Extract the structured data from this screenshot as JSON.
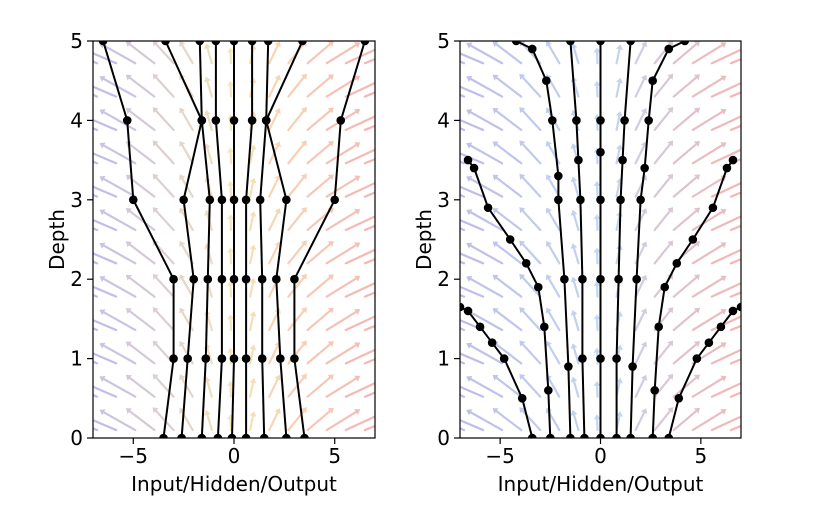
{
  "chart_data": [
    {
      "type": "line",
      "xlabel": "Input/Hidden/Output",
      "ylabel": "Depth",
      "xlim": [
        -7,
        7
      ],
      "ylim": [
        0,
        5
      ],
      "xticks": [
        -5,
        0,
        5
      ],
      "xtick_labels": [
        "−5",
        "0",
        "5"
      ],
      "yticks": [
        0,
        1,
        2,
        3,
        4,
        5
      ],
      "ytick_labels": [
        "0",
        "1",
        "2",
        "3",
        "4",
        "5"
      ],
      "line_color": "#000000",
      "marker_color": "#000000",
      "field_colors": {
        "left": "#8e86d8",
        "center": "#f4cf7a",
        "right": "#ec7a78"
      },
      "series": [
        {
          "x": [
            -3.5,
            -3.0,
            -3.0,
            -5.0,
            -5.3,
            -6.5
          ],
          "y": [
            0,
            1,
            2,
            3,
            4,
            5
          ]
        },
        {
          "x": [
            -2.6,
            -2.3,
            -2.0,
            -2.5,
            -1.6,
            -3.4
          ],
          "y": [
            0,
            1,
            2,
            3,
            4,
            5
          ]
        },
        {
          "x": [
            -1.6,
            -1.4,
            -1.3,
            -1.2,
            -1.6,
            -1.7
          ],
          "y": [
            0,
            1,
            2,
            3,
            4,
            5
          ]
        },
        {
          "x": [
            -0.8,
            -0.6,
            -0.6,
            -0.6,
            -0.9,
            -0.9
          ],
          "y": [
            0,
            1,
            2,
            3,
            4,
            5
          ]
        },
        {
          "x": [
            -0.1,
            0.0,
            0.0,
            0.0,
            0.0,
            0.0
          ],
          "y": [
            0,
            1,
            2,
            3,
            4,
            5
          ]
        },
        {
          "x": [
            0.6,
            0.6,
            0.6,
            0.6,
            0.9,
            0.9
          ],
          "y": [
            0,
            1,
            2,
            3,
            4,
            5
          ]
        },
        {
          "x": [
            1.5,
            1.4,
            1.4,
            1.3,
            1.6,
            1.7
          ],
          "y": [
            0,
            1,
            2,
            3,
            4,
            5
          ]
        },
        {
          "x": [
            2.6,
            2.3,
            2.1,
            2.6,
            1.6,
            3.4
          ],
          "y": [
            0,
            1,
            2,
            3,
            4,
            5
          ]
        },
        {
          "x": [
            3.5,
            3.0,
            3.0,
            5.0,
            5.3,
            6.5
          ],
          "y": [
            0,
            1,
            2,
            3,
            4,
            5
          ]
        }
      ]
    },
    {
      "type": "line",
      "xlabel": "Input/Hidden/Output",
      "ylabel": "Depth",
      "xlim": [
        -7,
        7
      ],
      "ylim": [
        0,
        5
      ],
      "xticks": [
        -5,
        0,
        5
      ],
      "xtick_labels": [
        "−5",
        "0",
        "5"
      ],
      "yticks": [
        0,
        1,
        2,
        3,
        4,
        5
      ],
      "ytick_labels": [
        "0",
        "1",
        "2",
        "3",
        "4",
        "5"
      ],
      "line_color": "#000000",
      "marker_color": "#000000",
      "field_colors": {
        "left": "#8e86d8",
        "center": "#8fb8e8",
        "right": "#ec7a78"
      },
      "series": [
        {
          "x": [
            -3.4,
            -3.9,
            -4.8,
            -5.4,
            -6.0,
            -6.6,
            -7.0
          ],
          "y": [
            0,
            0.5,
            1.0,
            1.2,
            1.4,
            1.6,
            1.65
          ]
        },
        {
          "x": [
            -2.5,
            -2.6,
            -2.8,
            -3.1,
            -3.7,
            -4.5,
            -5.6,
            -6.3,
            -6.6
          ],
          "y": [
            0,
            0.6,
            1.4,
            1.9,
            2.2,
            2.5,
            2.9,
            3.4,
            3.5
          ]
        },
        {
          "x": [
            -1.5,
            -1.6,
            -1.8,
            -2.1,
            -2.1,
            -2.4,
            -2.7,
            -3.4,
            -4.2
          ],
          "y": [
            0,
            0.9,
            2.0,
            3.0,
            3.3,
            4.0,
            4.5,
            4.9,
            5.0
          ]
        },
        {
          "x": [
            -0.8,
            -0.9,
            -0.9,
            -1.0,
            -1.1,
            -1.2,
            -1.5
          ],
          "y": [
            0,
            1.0,
            2.0,
            3.0,
            3.5,
            4.0,
            5.0
          ]
        },
        {
          "x": [
            0.0,
            0.0,
            0.0,
            0.0,
            0.0,
            0.0,
            0.0
          ],
          "y": [
            0,
            1.0,
            2.0,
            3.0,
            3.6,
            4.0,
            5.0
          ]
        },
        {
          "x": [
            0.8,
            0.8,
            0.9,
            1.0,
            1.1,
            1.2,
            1.5
          ],
          "y": [
            0,
            1.0,
            2.0,
            3.0,
            3.5,
            4.0,
            5.0
          ]
        },
        {
          "x": [
            1.5,
            1.6,
            1.8,
            2.0,
            2.2,
            2.4,
            2.6,
            3.4,
            4.2
          ],
          "y": [
            0,
            0.9,
            2.0,
            3.0,
            3.4,
            4.0,
            4.5,
            4.9,
            5.0
          ]
        },
        {
          "x": [
            2.6,
            2.7,
            2.9,
            3.2,
            3.8,
            4.6,
            5.6,
            6.3,
            6.6
          ],
          "y": [
            0,
            0.6,
            1.4,
            1.9,
            2.2,
            2.5,
            2.9,
            3.4,
            3.5
          ]
        },
        {
          "x": [
            3.4,
            3.9,
            4.8,
            5.4,
            6.0,
            6.6,
            7.0
          ],
          "y": [
            0,
            0.5,
            1.0,
            1.2,
            1.4,
            1.6,
            1.65
          ]
        }
      ]
    }
  ]
}
